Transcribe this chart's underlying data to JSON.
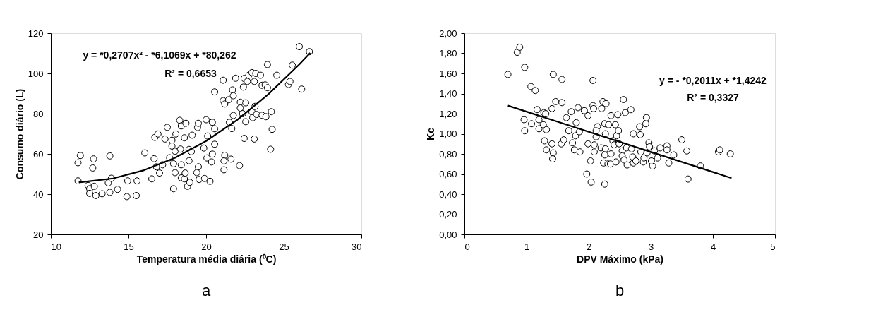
{
  "chart_data": [
    {
      "type": "scatter",
      "xlabel": "Temperatura média diária (⁰C)",
      "ylabel": "Consumo diário (L)",
      "xlim": [
        10,
        30
      ],
      "xticks": [
        10,
        15,
        20,
        25,
        30
      ],
      "ylim": [
        20,
        120
      ],
      "yticks": [
        20,
        40,
        60,
        80,
        100,
        120
      ],
      "marker": "circle",
      "annotations": [
        "y = *0,2707x² - *6,1069x + *80,262",
        "R² = 0,6653",
        "a"
      ],
      "series": [
        {
          "color": "#000000",
          "x": [
            11.75,
            11.9,
            11.75,
            12.4,
            12.5,
            12.5,
            12.8,
            12.9,
            12.7,
            12.75,
            13.3,
            13.8,
            13.7,
            13.8,
            13.9,
            14.3,
            14.9,
            14.95,
            15.5,
            15.55,
            16.05,
            16.5,
            16.65,
            16.7,
            16.9,
            16.8,
            17.0,
            17.2,
            17.35,
            17.5,
            17.65,
            17.8,
            17.8,
            17.9,
            17.9,
            18.0,
            18.05,
            18.0,
            18.3,
            18.4,
            18.35,
            18.4,
            18.4,
            18.6,
            18.6,
            18.7,
            18.65,
            18.8,
            18.9,
            18.95,
            18.9,
            19.05,
            19.1,
            19.45,
            19.5,
            19.5,
            19.4,
            19.55,
            19.85,
            19.9,
            20.0,
            20.1,
            20.05,
            20.25,
            20.4,
            20.4,
            20.35,
            20.55,
            20.55,
            20.55,
            21.1,
            21.1,
            21.2,
            21.45,
            21.2,
            21.15,
            21.15,
            21.5,
            21.6,
            21.7,
            21.75,
            21.75,
            21.65,
            21.9,
            22.15,
            22.4,
            22.45,
            22.2,
            22.2,
            22.35,
            22.55,
            22.55,
            22.45,
            22.75,
            22.95,
            22.65,
            23.1,
            23.2,
            23.5,
            22.95,
            23.0,
            23.1,
            23.15,
            23.25,
            23.6,
            23.8,
            23.95,
            23.95,
            23.6,
            23.85,
            24.2,
            24.25,
            24.15,
            24.55,
            25.3,
            25.4,
            25.55,
            26.0,
            26.15,
            26.65
          ],
          "values": [
            55.6,
            59.2,
            46.6,
            44.3,
            42.7,
            40.4,
            43.9,
            39.3,
            53.0,
            57.5,
            40.2,
            59.0,
            45.6,
            40.9,
            47.9,
            42.4,
            38.8,
            46.6,
            39.3,
            46.6,
            60.5,
            47.6,
            57.6,
            68.2,
            69.9,
            53.6,
            50.5,
            54.6,
            67.4,
            73.2,
            58.1,
            66.8,
            63.9,
            55.1,
            42.7,
            50.7,
            69.9,
            61.3,
            76.7,
            73.9,
            62.4,
            54.6,
            48.1,
            68.0,
            47.6,
            75.2,
            50.5,
            43.9,
            56.6,
            45.9,
            62.2,
            61.1,
            69.3,
            73.1,
            75.2,
            53.6,
            50.7,
            47.3,
            62.9,
            47.8,
            77.0,
            68.9,
            58.0,
            46.4,
            75.7,
            59.9,
            56.0,
            72.5,
            64.8,
            90.8,
            96.6,
            86.5,
            84.8,
            86.9,
            59.3,
            56.5,
            52.1,
            75.7,
            57.4,
            91.8,
            88.9,
            79.1,
            72.6,
            97.6,
            54.2,
            93.2,
            97.5,
            85.7,
            82.8,
            80.0,
            85.4,
            76.0,
            67.7,
            99.1,
            100.4,
            96.0,
            96.0,
            100.0,
            99.1,
            80.9,
            78.0,
            67.4,
            83.6,
            79.6,
            94.1,
            94.3,
            92.9,
            104.4,
            79.2,
            78.5,
            81.0,
            72.2,
            62.3,
            99.1,
            94.5,
            96.0,
            104.1,
            113.3,
            92.2,
            110.8
          ]
        },
        {
          "type": "line",
          "color": "#000000",
          "line_style": "solid",
          "marker": "none",
          "x": [
            11.8,
            12,
            14,
            16,
            18,
            20,
            22,
            24,
            26,
            26.7
          ],
          "values": [
            45.9,
            46.0,
            47.8,
            51.9,
            58.1,
            66.4,
            76.9,
            89.6,
            104.5,
            110.2
          ]
        }
      ]
    },
    {
      "type": "scatter",
      "xlabel": "DPV Máximo  (kPa)",
      "ylabel": "Kc",
      "xlim": [
        0,
        5
      ],
      "xticks": [
        0,
        1,
        2,
        3,
        4,
        5
      ],
      "ylim": [
        0,
        2
      ],
      "yticks": [
        {
          "value": 0,
          "label": "0,00"
        },
        {
          "value": 0.2,
          "label": "0,20"
        },
        {
          "value": 0.4,
          "label": "0,40"
        },
        {
          "value": 0.6,
          "label": "0,60"
        },
        {
          "value": 0.8,
          "label": "0,80"
        },
        {
          "value": 1,
          "label": "1,00"
        },
        {
          "value": 1.2,
          "label": "1,20"
        },
        {
          "value": 1.4,
          "label": "1,40"
        },
        {
          "value": 1.6,
          "label": "1,60"
        },
        {
          "value": 1.8,
          "label": "1,80"
        },
        {
          "value": 2,
          "label": "2,00"
        }
      ],
      "marker": "circle",
      "annotations": [
        "y = - *0,2011x + *1,4242",
        "R² = 0,3327",
        "b"
      ],
      "series": [
        {
          "color": "#000000",
          "x": [
            0.7,
            0.85,
            0.89,
            0.97,
            0.96,
            0.97,
            1.07,
            1.08,
            1.14,
            1.17,
            1.2,
            1.2,
            1.27,
            1.28,
            1.31,
            1.32,
            1.29,
            1.32,
            1.41,
            1.41,
            1.43,
            1.42,
            1.43,
            1.47,
            1.57,
            1.57,
            1.56,
            1.6,
            1.64,
            1.68,
            1.72,
            1.74,
            1.77,
            1.79,
            1.8,
            1.83,
            1.86,
            1.85,
            1.93,
            1.99,
            1.97,
            1.99,
            2.03,
            2.04,
            2.07,
            2.07,
            2.08,
            2.09,
            2.09,
            2.12,
            2.14,
            2.12,
            2.21,
            2.23,
            2.2,
            2.24,
            2.26,
            2.27,
            2.27,
            2.26,
            2.26,
            2.28,
            2.31,
            2.32,
            2.35,
            2.36,
            2.36,
            2.39,
            2.41,
            2.43,
            2.44,
            2.45,
            2.47,
            2.48,
            2.49,
            2.54,
            2.54,
            2.56,
            2.57,
            2.59,
            2.62,
            2.61,
            2.68,
            2.69,
            2.72,
            2.71,
            2.72,
            2.76,
            2.82,
            2.83,
            2.84,
            2.88,
            2.89,
            2.92,
            2.93,
            2.94,
            2.97,
            2.98,
            3.03,
            3.01,
            3.06,
            3.11,
            3.15,
            3.26,
            3.26,
            3.29,
            3.37,
            3.5,
            3.58,
            3.6,
            3.8,
            4.09,
            4.11,
            4.28
          ],
          "values": [
            1.59,
            1.81,
            1.86,
            1.66,
            1.14,
            1.03,
            1.47,
            1.1,
            1.43,
            1.24,
            1.14,
            1.05,
            1.09,
            1.21,
            1.2,
            1.04,
            0.93,
            0.84,
            1.25,
            0.9,
            0.81,
            0.75,
            1.59,
            1.32,
            1.54,
            1.31,
            0.9,
            0.94,
            1.16,
            1.03,
            1.22,
            0.91,
            0.84,
            0.98,
            1.11,
            1.26,
            0.82,
            1.02,
            1.23,
            1.18,
            0.6,
            0.9,
            0.73,
            0.52,
            1.53,
            1.28,
            1.25,
            0.82,
            0.89,
            0.97,
            1.07,
            1.03,
            1.25,
            1.32,
            0.86,
            0.71,
            1.1,
            1.0,
            0.85,
            0.79,
            0.5,
            1.3,
            0.7,
            1.09,
            0.7,
            0.8,
            1.18,
            0.93,
            0.89,
            1.09,
            0.72,
            0.98,
            1.19,
            1.03,
            0.9,
            0.83,
            0.78,
            1.34,
            0.74,
            1.21,
            0.69,
            0.86,
            1.24,
            0.85,
            1.0,
            0.77,
            0.71,
            0.73,
            1.07,
            0.99,
            0.82,
            0.72,
            0.76,
            1.1,
            1.16,
            0.81,
            0.91,
            0.87,
            0.68,
            0.73,
            0.83,
            0.76,
            0.86,
            0.88,
            0.84,
            0.71,
            0.79,
            0.94,
            0.83,
            0.55,
            0.68,
            0.82,
            0.84,
            0.8
          ]
        },
        {
          "type": "line",
          "color": "#000000",
          "line_style": "solid",
          "marker": "none",
          "x": [
            0.7,
            4.3
          ],
          "values": [
            1.28,
            0.56
          ]
        }
      ]
    }
  ]
}
